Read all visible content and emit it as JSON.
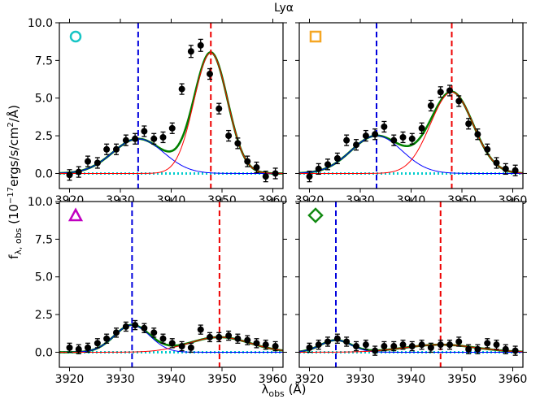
{
  "figure": {
    "title": "Lyα",
    "xlabel_main": "λ",
    "xlabel_sub": "obs",
    "xlabel_unit": " (Å)",
    "ylabel_main": "f",
    "ylabel_sub": "λ, obs",
    "ylabel_unit_pre": " (10",
    "ylabel_exp": "−17",
    "ylabel_unit_post": "ergs/s/cm",
    "ylabel_exp2": "2",
    "ylabel_unit_end": "/Å)"
  },
  "colors": {
    "data": "#000000",
    "total_fit": "#008000",
    "blue_component": "#0000ff",
    "red_component": "#ff0000",
    "blue_line": "#0000dd",
    "red_line": "#ee0000",
    "zero_line": "#00cccc",
    "marker_circle": "#17c5c5",
    "marker_square": "#f5a623",
    "marker_triangle": "#c000c0",
    "marker_diamond": "#138a13"
  },
  "chart_data": [
    {
      "type": "scatter",
      "marker": "circle",
      "xlim": [
        3918,
        3962
      ],
      "ylim": [
        -1,
        10
      ],
      "xticks": [
        3920,
        3930,
        3940,
        3950,
        3960
      ],
      "yticks": [
        0.0,
        2.5,
        5.0,
        7.5,
        10.0
      ],
      "ytick_labels": [
        "0.0",
        "2.5",
        "5.0",
        "7.5",
        "10.0"
      ],
      "show_yticks": true,
      "blue_center": 3933.5,
      "red_center": 3947.8,
      "fit": {
        "blue": {
          "amp": 2.3,
          "center": 3933.5,
          "sigma": 5.0
        },
        "red": {
          "amp": 8.0,
          "center": 3947.8,
          "sigma": 3.3
        }
      },
      "series": [
        {
          "x": [
            3920.0,
            3921.8,
            3923.6,
            3925.5,
            3927.3,
            3929.2,
            3931.1,
            3932.9,
            3934.7,
            3936.6,
            3938.4,
            3940.2,
            3942.1,
            3943.9,
            3945.8,
            3947.6,
            3949.4,
            3951.3,
            3953.1,
            3955.0,
            3956.8,
            3958.6,
            3960.5
          ],
          "y": [
            -0.1,
            0.1,
            0.8,
            0.7,
            1.6,
            1.6,
            2.2,
            2.3,
            2.8,
            2.3,
            2.4,
            3.0,
            5.6,
            8.1,
            8.5,
            6.6,
            4.3,
            2.5,
            2.0,
            0.8,
            0.4,
            -0.2,
            0.0
          ],
          "err": [
            0.35,
            0.35,
            0.35,
            0.35,
            0.35,
            0.35,
            0.35,
            0.35,
            0.35,
            0.35,
            0.35,
            0.35,
            0.35,
            0.4,
            0.4,
            0.35,
            0.35,
            0.35,
            0.35,
            0.35,
            0.35,
            0.35,
            0.35
          ]
        }
      ]
    },
    {
      "type": "scatter",
      "marker": "square",
      "xlim": [
        3918,
        3962
      ],
      "ylim": [
        -1,
        10
      ],
      "xticks": [
        3920,
        3930,
        3940,
        3950,
        3960
      ],
      "yticks": [
        0.0,
        2.5,
        5.0,
        7.5,
        10.0
      ],
      "show_yticks": false,
      "blue_center": 3933.2,
      "red_center": 3948.0,
      "fit": {
        "blue": {
          "amp": 2.5,
          "center": 3933.2,
          "sigma": 5.0
        },
        "red": {
          "amp": 5.4,
          "center": 3948.0,
          "sigma": 4.2
        }
      },
      "series": [
        {
          "x": [
            3920.0,
            3921.8,
            3923.6,
            3925.5,
            3927.3,
            3929.2,
            3931.1,
            3932.9,
            3934.7,
            3936.6,
            3938.4,
            3940.2,
            3942.1,
            3943.9,
            3945.8,
            3947.6,
            3949.4,
            3951.3,
            3953.1,
            3955.0,
            3956.8,
            3958.6,
            3960.5
          ],
          "y": [
            -0.2,
            0.3,
            0.6,
            1.0,
            2.2,
            1.9,
            2.5,
            2.6,
            3.1,
            2.2,
            2.4,
            2.3,
            3.0,
            4.5,
            5.4,
            5.5,
            4.8,
            3.3,
            2.6,
            1.6,
            0.7,
            0.3,
            0.2
          ],
          "err": [
            0.35,
            0.35,
            0.35,
            0.35,
            0.35,
            0.35,
            0.35,
            0.35,
            0.35,
            0.35,
            0.35,
            0.35,
            0.35,
            0.35,
            0.35,
            0.35,
            0.35,
            0.35,
            0.35,
            0.35,
            0.35,
            0.35,
            0.35
          ]
        }
      ]
    },
    {
      "type": "scatter",
      "marker": "triangle",
      "xlim": [
        3918,
        3962
      ],
      "ylim": [
        -1,
        10
      ],
      "xticks": [
        3920,
        3930,
        3940,
        3950,
        3960
      ],
      "yticks": [
        0.0,
        2.5,
        5.0,
        7.5,
        10.0
      ],
      "ytick_labels": [
        "0.0",
        "2.5",
        "5.0",
        "7.5",
        "10.0"
      ],
      "show_yticks": true,
      "blue_center": 3932.3,
      "red_center": 3949.5,
      "fit": {
        "blue": {
          "amp": 1.8,
          "center": 3932.3,
          "sigma": 3.5
        },
        "red": {
          "amp": 1.0,
          "center": 3949.5,
          "sigma": 6.0
        }
      },
      "series": [
        {
          "x": [
            3920.0,
            3921.8,
            3923.6,
            3925.5,
            3927.3,
            3929.2,
            3931.1,
            3932.9,
            3934.7,
            3936.6,
            3938.4,
            3940.2,
            3942.1,
            3943.9,
            3945.8,
            3947.6,
            3949.4,
            3951.3,
            3953.1,
            3955.0,
            3956.8,
            3958.6,
            3960.5
          ],
          "y": [
            0.3,
            0.2,
            0.3,
            0.6,
            0.9,
            1.3,
            1.7,
            1.8,
            1.6,
            1.3,
            0.9,
            0.6,
            0.4,
            0.3,
            1.5,
            1.0,
            1.0,
            1.1,
            0.9,
            0.8,
            0.6,
            0.5,
            0.4
          ],
          "err": [
            0.3,
            0.3,
            0.3,
            0.3,
            0.3,
            0.3,
            0.3,
            0.3,
            0.3,
            0.3,
            0.3,
            0.3,
            0.3,
            0.3,
            0.3,
            0.3,
            0.3,
            0.3,
            0.3,
            0.3,
            0.3,
            0.3,
            0.3
          ]
        }
      ]
    },
    {
      "type": "scatter",
      "marker": "diamond",
      "xlim": [
        3918,
        3962
      ],
      "ylim": [
        -1,
        10
      ],
      "xticks": [
        3920,
        3930,
        3940,
        3950,
        3960
      ],
      "yticks": [
        0.0,
        2.5,
        5.0,
        7.5,
        10.0
      ],
      "show_yticks": false,
      "blue_center": 3925.2,
      "red_center": 3945.8,
      "fit": {
        "blue": {
          "amp": 0.8,
          "center": 3925.2,
          "sigma": 3.0
        },
        "red": {
          "amp": 0.5,
          "center": 3945.8,
          "sigma": 7.0
        }
      },
      "series": [
        {
          "x": [
            3920.0,
            3921.8,
            3923.6,
            3925.5,
            3927.3,
            3929.2,
            3931.1,
            3932.9,
            3934.7,
            3936.6,
            3938.4,
            3940.2,
            3942.1,
            3943.9,
            3945.8,
            3947.6,
            3949.4,
            3951.3,
            3953.1,
            3955.0,
            3956.8,
            3958.6,
            3960.5
          ],
          "y": [
            0.3,
            0.5,
            0.7,
            0.9,
            0.7,
            0.4,
            0.5,
            0.1,
            0.4,
            0.4,
            0.5,
            0.4,
            0.5,
            0.3,
            0.5,
            0.5,
            0.7,
            0.2,
            0.2,
            0.6,
            0.5,
            0.2,
            0.1
          ],
          "err": [
            0.3,
            0.3,
            0.3,
            0.3,
            0.3,
            0.3,
            0.3,
            0.3,
            0.3,
            0.3,
            0.3,
            0.3,
            0.3,
            0.3,
            0.3,
            0.3,
            0.3,
            0.3,
            0.3,
            0.3,
            0.3,
            0.3,
            0.3
          ]
        }
      ]
    }
  ]
}
